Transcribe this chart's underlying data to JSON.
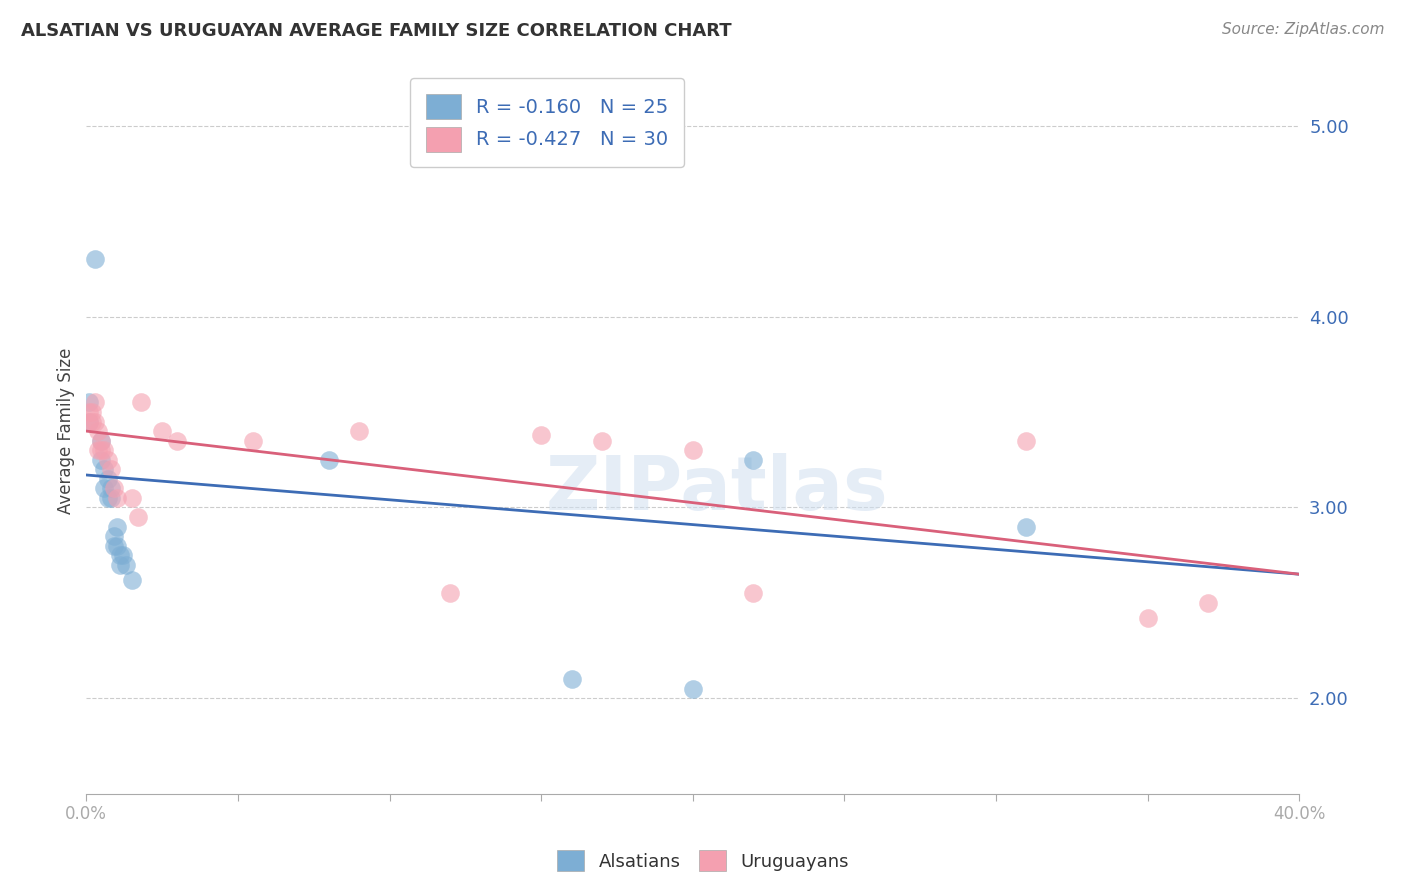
{
  "title": "ALSATIAN VS URUGUAYAN AVERAGE FAMILY SIZE CORRELATION CHART",
  "source": "Source: ZipAtlas.com",
  "ylabel": "Average Family Size",
  "xlim": [
    0.0,
    0.4
  ],
  "ylim": [
    1.5,
    5.3
  ],
  "yticks": [
    2.0,
    3.0,
    4.0,
    5.0
  ],
  "background_color": "#ffffff",
  "legend_alsatian_R": -0.16,
  "legend_alsatian_N": 25,
  "legend_uruguayan_R": -0.427,
  "legend_uruguayan_N": 30,
  "alsatian_color": "#7daed4",
  "uruguayan_color": "#f4a0b0",
  "alsatian_line_color": "#3d6cb5",
  "uruguayan_line_color": "#d9607a",
  "alsatian_points": [
    [
      0.001,
      3.55
    ],
    [
      0.001,
      3.45
    ],
    [
      0.003,
      4.3
    ],
    [
      0.005,
      3.35
    ],
    [
      0.005,
      3.25
    ],
    [
      0.006,
      3.2
    ],
    [
      0.006,
      3.1
    ],
    [
      0.007,
      3.15
    ],
    [
      0.007,
      3.05
    ],
    [
      0.008,
      3.1
    ],
    [
      0.008,
      3.05
    ],
    [
      0.009,
      2.85
    ],
    [
      0.009,
      2.8
    ],
    [
      0.01,
      2.9
    ],
    [
      0.01,
      2.8
    ],
    [
      0.011,
      2.75
    ],
    [
      0.011,
      2.7
    ],
    [
      0.012,
      2.75
    ],
    [
      0.013,
      2.7
    ],
    [
      0.015,
      2.62
    ],
    [
      0.08,
      3.25
    ],
    [
      0.16,
      2.1
    ],
    [
      0.2,
      2.05
    ],
    [
      0.22,
      3.25
    ],
    [
      0.31,
      2.9
    ]
  ],
  "uruguayan_points": [
    [
      0.001,
      3.5
    ],
    [
      0.001,
      3.45
    ],
    [
      0.002,
      3.5
    ],
    [
      0.002,
      3.45
    ],
    [
      0.003,
      3.55
    ],
    [
      0.003,
      3.45
    ],
    [
      0.004,
      3.4
    ],
    [
      0.004,
      3.3
    ],
    [
      0.005,
      3.35
    ],
    [
      0.005,
      3.3
    ],
    [
      0.006,
      3.3
    ],
    [
      0.007,
      3.25
    ],
    [
      0.008,
      3.2
    ],
    [
      0.009,
      3.1
    ],
    [
      0.01,
      3.05
    ],
    [
      0.015,
      3.05
    ],
    [
      0.017,
      2.95
    ],
    [
      0.018,
      3.55
    ],
    [
      0.025,
      3.4
    ],
    [
      0.03,
      3.35
    ],
    [
      0.055,
      3.35
    ],
    [
      0.09,
      3.4
    ],
    [
      0.12,
      2.55
    ],
    [
      0.15,
      3.38
    ],
    [
      0.17,
      3.35
    ],
    [
      0.2,
      3.3
    ],
    [
      0.22,
      2.55
    ],
    [
      0.31,
      3.35
    ],
    [
      0.35,
      2.42
    ],
    [
      0.37,
      2.5
    ]
  ]
}
